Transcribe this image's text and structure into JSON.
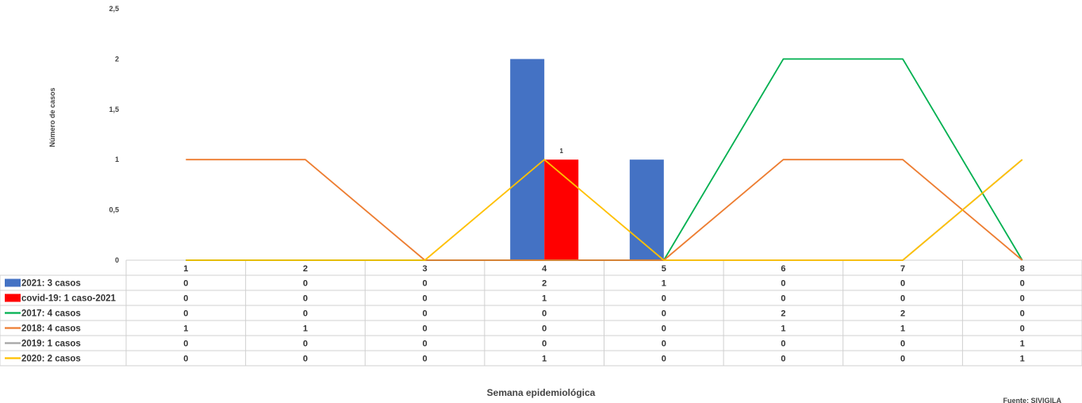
{
  "chart_data": {
    "type": "bar",
    "xlabel": "Semana epidemiológica",
    "ylabel": "Número de casos",
    "source": "Fuente: SIVIGILA",
    "categories": [
      "1",
      "2",
      "3",
      "4",
      "5",
      "6",
      "7",
      "8"
    ],
    "ylim": [
      0,
      2.5
    ],
    "yticks": [
      "0",
      "0,5",
      "1",
      "1,5",
      "2",
      "2,5"
    ],
    "series": [
      {
        "name": "2021: 3 casos",
        "kind": "bar",
        "color": "#4472C4",
        "values": [
          0,
          0,
          0,
          2,
          1,
          0,
          0,
          0
        ]
      },
      {
        "name": "covid-19: 1 caso-2021",
        "kind": "bar",
        "color": "#FF0000",
        "values": [
          0,
          0,
          0,
          1,
          0,
          0,
          0,
          0
        ],
        "data_label": "1"
      },
      {
        "name": "2017: 4 casos",
        "kind": "line",
        "color": "#00B050",
        "values": [
          0,
          0,
          0,
          0,
          0,
          2,
          2,
          0
        ]
      },
      {
        "name": "2018:  4 casos",
        "kind": "line",
        "color": "#ED7D31",
        "values": [
          1,
          1,
          0,
          0,
          0,
          1,
          1,
          0
        ]
      },
      {
        "name": "2019: 1 casos",
        "kind": "line",
        "color": "#A5A5A5",
        "values": [
          0,
          0,
          0,
          0,
          0,
          0,
          0,
          1
        ]
      },
      {
        "name": "2020: 2 casos",
        "kind": "line",
        "color": "#FFC000",
        "values": [
          0,
          0,
          0,
          1,
          0,
          0,
          0,
          1
        ]
      }
    ]
  }
}
